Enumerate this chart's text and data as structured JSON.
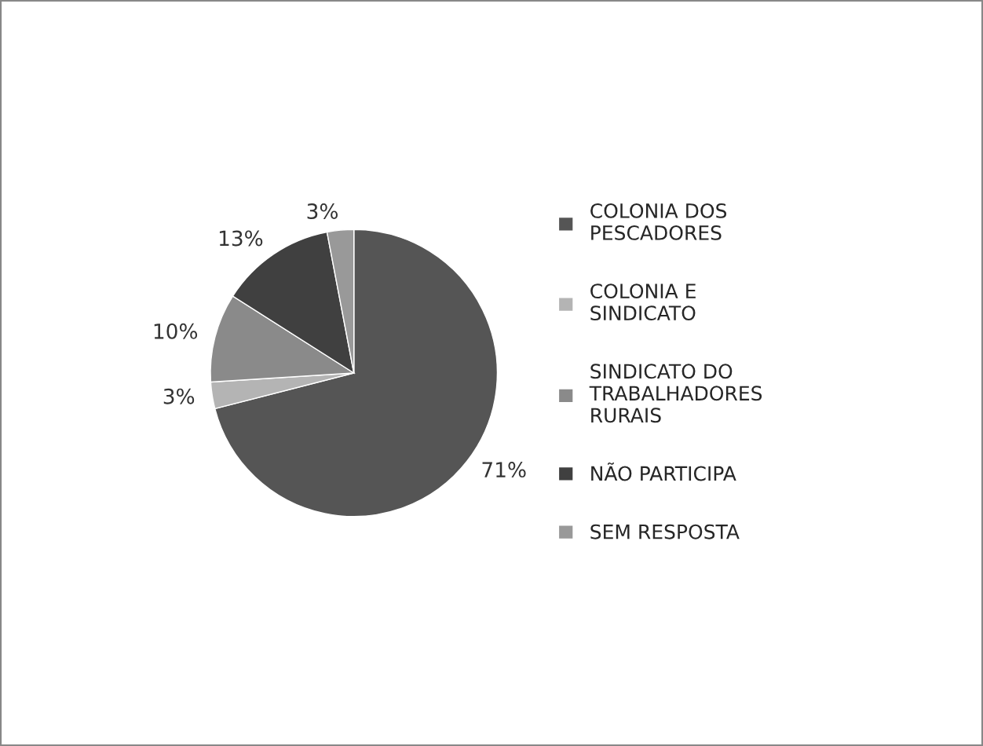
{
  "chart_data": {
    "type": "pie",
    "categories": [
      "COLONIA DOS\nPESCADORES",
      "COLONIA E\nSINDICATO",
      "SINDICATO DO\nTRABALHADORES\nRURAIS",
      "NÃO PARTICIPA",
      "SEM RESPOSTA"
    ],
    "values": [
      71,
      3,
      10,
      13,
      3
    ],
    "value_labels": [
      "71%",
      "3%",
      "10%",
      "13%",
      "3%"
    ],
    "colors": [
      "#555555",
      "#b4b4b4",
      "#8a8a8a",
      "#404040",
      "#999999"
    ],
    "legend": "right"
  }
}
